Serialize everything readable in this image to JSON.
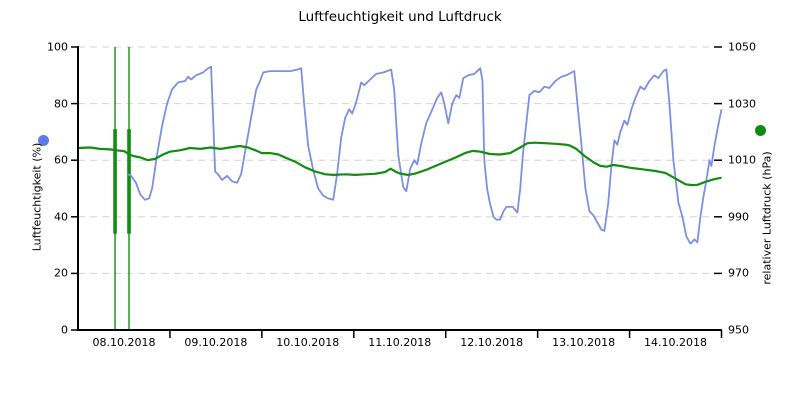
{
  "title": "Luftfeuchtigkeit und Luftdruck",
  "colors": {
    "humidity_line": "#7b90e2",
    "humidity_marker": "#5b7ae8",
    "pressure_line": "#128c12",
    "pressure_marker": "#0c8c0c",
    "grid": "#d4d4d4",
    "axis": "#000000",
    "background": "#ffffff"
  },
  "chart_data": {
    "type": "line",
    "title": "Luftfeuchtigkeit und Luftdruck",
    "grid": "horizontal-dashed",
    "legend_position": "rotated-axis-labels-with-dots",
    "x_axis": {
      "unit": "days",
      "range_days": [
        0,
        7
      ],
      "tick_labels": [
        "08.10.2018",
        "09.10.2018",
        "10.10.2018",
        "11.10.2018",
        "12.10.2018",
        "13.10.2018",
        "14.10.2018"
      ],
      "day_boundary_ticks": [
        1,
        2,
        3,
        4,
        5,
        6,
        7
      ]
    },
    "y_left": {
      "label": "Luftfeuchtigkeit (%)",
      "range": [
        0,
        100
      ],
      "ticks": [
        0,
        20,
        40,
        60,
        80,
        100
      ]
    },
    "y_right": {
      "label": "relativer Luftdruck (hPa)",
      "range": [
        950,
        1050
      ],
      "ticks": [
        950,
        970,
        990,
        1010,
        1030,
        1050
      ]
    },
    "series": [
      {
        "name": "Luftfeuchtigkeit (%)",
        "axis": "left",
        "color": "#7b90e2",
        "points": [
          [
            0.544,
            55
          ],
          [
            0.577,
            54.5
          ],
          [
            0.631,
            52
          ],
          [
            0.675,
            48
          ],
          [
            0.729,
            46
          ],
          [
            0.773,
            46.5
          ],
          [
            0.806,
            50
          ],
          [
            0.86,
            62
          ],
          [
            0.914,
            72
          ],
          [
            0.969,
            80
          ],
          [
            1.023,
            85
          ],
          [
            1.089,
            87.5
          ],
          [
            1.165,
            88
          ],
          [
            1.197,
            89.5
          ],
          [
            1.23,
            88.5
          ],
          [
            1.285,
            90
          ],
          [
            1.361,
            91
          ],
          [
            1.415,
            92.5
          ],
          [
            1.448,
            93
          ],
          [
            1.47,
            75
          ],
          [
            1.491,
            56
          ],
          [
            1.524,
            55
          ],
          [
            1.568,
            53
          ],
          [
            1.622,
            54.5
          ],
          [
            1.677,
            52.5
          ],
          [
            1.731,
            52
          ],
          [
            1.774,
            55
          ],
          [
            1.829,
            65
          ],
          [
            1.883,
            75
          ],
          [
            1.938,
            85
          ],
          [
            1.981,
            88
          ],
          [
            2.014,
            91
          ],
          [
            2.09,
            91.5
          ],
          [
            2.199,
            91.5
          ],
          [
            2.308,
            91.5
          ],
          [
            2.384,
            92
          ],
          [
            2.428,
            92.5
          ],
          [
            2.46,
            80
          ],
          [
            2.504,
            65
          ],
          [
            2.558,
            56.5
          ],
          [
            2.613,
            50
          ],
          [
            2.667,
            47.5
          ],
          [
            2.721,
            46.5
          ],
          [
            2.776,
            46
          ],
          [
            2.819,
            55
          ],
          [
            2.863,
            68
          ],
          [
            2.907,
            75
          ],
          [
            2.95,
            78
          ],
          [
            2.983,
            76.5
          ],
          [
            3.026,
            80.5
          ],
          [
            3.081,
            87.5
          ],
          [
            3.113,
            86.5
          ],
          [
            3.179,
            88.5
          ],
          [
            3.244,
            90.5
          ],
          [
            3.32,
            91
          ],
          [
            3.407,
            92
          ],
          [
            3.44,
            85
          ],
          [
            3.483,
            62
          ],
          [
            3.538,
            50.5
          ],
          [
            3.571,
            49
          ],
          [
            3.614,
            57
          ],
          [
            3.658,
            60
          ],
          [
            3.69,
            58.5
          ],
          [
            3.734,
            66
          ],
          [
            3.788,
            73
          ],
          [
            3.854,
            78
          ],
          [
            3.908,
            82
          ],
          [
            3.952,
            84
          ],
          [
            3.985,
            80
          ],
          [
            4.028,
            73
          ],
          [
            4.071,
            80
          ],
          [
            4.115,
            83
          ],
          [
            4.148,
            82
          ],
          [
            4.191,
            89
          ],
          [
            4.246,
            90
          ],
          [
            4.311,
            90.5
          ],
          [
            4.376,
            92.5
          ],
          [
            4.4,
            88
          ],
          [
            4.42,
            60
          ],
          [
            4.45,
            50
          ],
          [
            4.48,
            45
          ],
          [
            4.52,
            40
          ],
          [
            4.55,
            39
          ],
          [
            4.59,
            39
          ],
          [
            4.63,
            42
          ],
          [
            4.66,
            43.5
          ],
          [
            4.73,
            43.5
          ],
          [
            4.78,
            41.5
          ],
          [
            4.81,
            50
          ],
          [
            4.84,
            62
          ],
          [
            4.88,
            74
          ],
          [
            4.91,
            83
          ],
          [
            4.964,
            84.5
          ],
          [
            5.018,
            84
          ],
          [
            5.073,
            86
          ],
          [
            5.127,
            85.5
          ],
          [
            5.193,
            88
          ],
          [
            5.258,
            89.5
          ],
          [
            5.312,
            90
          ],
          [
            5.367,
            91
          ],
          [
            5.399,
            91.5
          ],
          [
            5.432,
            80
          ],
          [
            5.475,
            66
          ],
          [
            5.519,
            50
          ],
          [
            5.563,
            42
          ],
          [
            5.606,
            40.5
          ],
          [
            5.65,
            38
          ],
          [
            5.693,
            35.5
          ],
          [
            5.726,
            35
          ],
          [
            5.769,
            45
          ],
          [
            5.802,
            58
          ],
          [
            5.835,
            67
          ],
          [
            5.867,
            65.5
          ],
          [
            5.9,
            70
          ],
          [
            5.944,
            74
          ],
          [
            5.976,
            72.5
          ],
          [
            6.02,
            78
          ],
          [
            6.063,
            82
          ],
          [
            6.118,
            86
          ],
          [
            6.161,
            85
          ],
          [
            6.216,
            88
          ],
          [
            6.27,
            90
          ],
          [
            6.313,
            89
          ],
          [
            6.368,
            91.5
          ],
          [
            6.401,
            92
          ],
          [
            6.433,
            80
          ],
          [
            6.477,
            60
          ],
          [
            6.531,
            45
          ],
          [
            6.575,
            40
          ],
          [
            6.618,
            33
          ],
          [
            6.662,
            30.5
          ],
          [
            6.705,
            32
          ],
          [
            6.738,
            31
          ],
          [
            6.771,
            40
          ],
          [
            6.803,
            47
          ],
          [
            6.836,
            53
          ],
          [
            6.869,
            60
          ],
          [
            6.89,
            58
          ],
          [
            6.923,
            65
          ],
          [
            6.956,
            71
          ],
          [
            7.0,
            78
          ]
        ]
      },
      {
        "name": "relativer Luftdruck (hPa)",
        "axis": "right",
        "color": "#128c12",
        "points": [
          [
            0,
            1014.3
          ],
          [
            0.13,
            1014.5
          ],
          [
            0.24,
            1014
          ],
          [
            0.35,
            1013.8
          ],
          [
            0.42,
            1013.5
          ],
          [
            0.5,
            1013.2
          ],
          [
            0.56,
            1012
          ],
          [
            0.6,
            1011.5
          ],
          [
            0.675,
            1011
          ],
          [
            0.76,
            1010
          ],
          [
            0.84,
            1010.5
          ],
          [
            0.925,
            1012
          ],
          [
            1.0,
            1013
          ],
          [
            1.11,
            1013.5
          ],
          [
            1.22,
            1014.3
          ],
          [
            1.33,
            1014
          ],
          [
            1.44,
            1014.5
          ],
          [
            1.55,
            1014
          ],
          [
            1.65,
            1014.5
          ],
          [
            1.76,
            1015
          ],
          [
            1.85,
            1014.5
          ],
          [
            1.93,
            1013.5
          ],
          [
            2.0,
            1012.5
          ],
          [
            2.09,
            1012.5
          ],
          [
            2.18,
            1012
          ],
          [
            2.25,
            1011
          ],
          [
            2.36,
            1009.5
          ],
          [
            2.47,
            1007.5
          ],
          [
            2.58,
            1006
          ],
          [
            2.69,
            1005
          ],
          [
            2.78,
            1004.8
          ],
          [
            2.91,
            1005
          ],
          [
            3.02,
            1004.8
          ],
          [
            3.12,
            1005
          ],
          [
            3.23,
            1005.2
          ],
          [
            3.34,
            1005.8
          ],
          [
            3.4,
            1007
          ],
          [
            3.45,
            1006
          ],
          [
            3.5,
            1005.3
          ],
          [
            3.59,
            1004.8
          ],
          [
            3.67,
            1005.3
          ],
          [
            3.78,
            1006.5
          ],
          [
            3.89,
            1008
          ],
          [
            4.0,
            1009.5
          ],
          [
            4.11,
            1011
          ],
          [
            4.21,
            1012.5
          ],
          [
            4.29,
            1013.3
          ],
          [
            4.38,
            1013
          ],
          [
            4.48,
            1012.2
          ],
          [
            4.59,
            1012
          ],
          [
            4.7,
            1012.5
          ],
          [
            4.81,
            1014.5
          ],
          [
            4.89,
            1016
          ],
          [
            4.97,
            1016.2
          ],
          [
            5.08,
            1016
          ],
          [
            5.19,
            1015.8
          ],
          [
            5.3,
            1015.5
          ],
          [
            5.35,
            1015.2
          ],
          [
            5.42,
            1014
          ],
          [
            5.51,
            1011.5
          ],
          [
            5.62,
            1009
          ],
          [
            5.68,
            1008
          ],
          [
            5.75,
            1007.7
          ],
          [
            5.82,
            1008.3
          ],
          [
            5.9,
            1008
          ],
          [
            6.01,
            1007.3
          ],
          [
            6.14,
            1006.8
          ],
          [
            6.28,
            1006.2
          ],
          [
            6.39,
            1005.5
          ],
          [
            6.5,
            1003.5
          ],
          [
            6.61,
            1001.5
          ],
          [
            6.68,
            1001.2
          ],
          [
            6.74,
            1001.3
          ],
          [
            6.82,
            1002.3
          ],
          [
            6.91,
            1003.2
          ],
          [
            7.0,
            1003.8
          ]
        ]
      }
    ],
    "artifacts": [
      {
        "type": "vertical-spike",
        "series": "relativer Luftdruck (hPa)",
        "t": 0.403,
        "value_span": [
          950,
          1050
        ],
        "thick_span": [
          984,
          1021
        ]
      },
      {
        "type": "vertical-spike",
        "series": "relativer Luftdruck (hPa)",
        "t": 0.555,
        "value_span": [
          950,
          1050
        ],
        "thick_span": [
          984,
          1021
        ]
      }
    ]
  }
}
